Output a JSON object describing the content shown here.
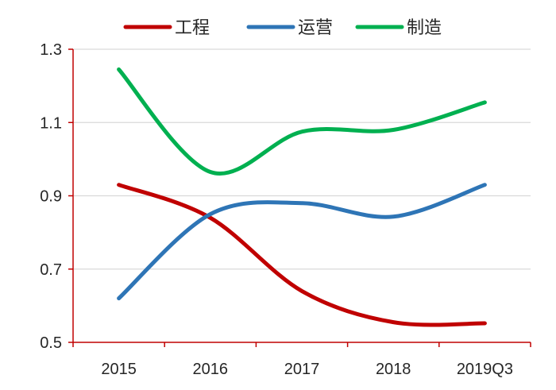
{
  "chart_data": {
    "type": "line",
    "title": "",
    "xlabel": "",
    "ylabel": "",
    "categories": [
      "2015",
      "2016",
      "2017",
      "2018",
      "2019Q3"
    ],
    "ylim": [
      0.5,
      1.3
    ],
    "yticks": [
      "0.5",
      "0.7",
      "0.9",
      "1.1",
      "1.3"
    ],
    "grid": "horizontal",
    "legend_position": "top",
    "smooth": true,
    "series": [
      {
        "name": "工程",
        "color": "#C00000",
        "values": [
          0.93,
          0.84,
          0.64,
          0.555,
          0.552
        ]
      },
      {
        "name": "运营",
        "color": "#2E75B6",
        "values": [
          0.62,
          0.85,
          0.88,
          0.843,
          0.93
        ]
      },
      {
        "name": "制造",
        "color": "#00B050",
        "values": [
          1.245,
          0.965,
          1.075,
          1.08,
          1.155
        ]
      }
    ]
  }
}
